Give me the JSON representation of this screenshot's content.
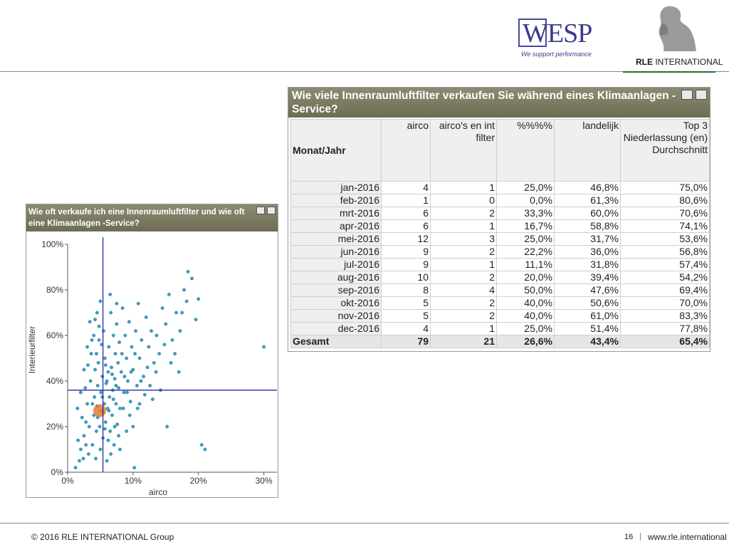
{
  "header": {
    "wesp_logo": {
      "text": "WESP",
      "tagline": "We support performance"
    },
    "rle_logo": {
      "name_bold": "RLE",
      "name_rest": " INTERNATIONAL",
      "icon": "thinker-statue-icon"
    }
  },
  "table_window": {
    "title": "Wie viele Innenraumluftfilter verkaufen Sie während eines Klimaanlagen -Service?",
    "columns": [
      "Monat/Jahr",
      "airco",
      "airco's en int filter",
      "%%%%",
      "landelijk",
      "Top 3 Niederlassung (en) Durchschnitt"
    ],
    "rows": [
      [
        "jan-2016",
        "4",
        "1",
        "25,0%",
        "46,8%",
        "75,0%"
      ],
      [
        "feb-2016",
        "1",
        "0",
        "0,0%",
        "61,3%",
        "80,6%"
      ],
      [
        "mrt-2016",
        "6",
        "2",
        "33,3%",
        "60,0%",
        "70,6%"
      ],
      [
        "apr-2016",
        "6",
        "1",
        "16,7%",
        "58,8%",
        "74,1%"
      ],
      [
        "mei-2016",
        "12",
        "3",
        "25,0%",
        "31,7%",
        "53,6%"
      ],
      [
        "jun-2016",
        "9",
        "2",
        "22,2%",
        "36,0%",
        "56,8%"
      ],
      [
        "jul-2016",
        "9",
        "1",
        "11,1%",
        "31,8%",
        "57,4%"
      ],
      [
        "aug-2016",
        "10",
        "2",
        "20,0%",
        "39,4%",
        "54,2%"
      ],
      [
        "sep-2016",
        "8",
        "4",
        "50,0%",
        "47,6%",
        "69,4%"
      ],
      [
        "okt-2016",
        "5",
        "2",
        "40,0%",
        "50,6%",
        "70,0%"
      ],
      [
        "nov-2016",
        "5",
        "2",
        "40,0%",
        "61,0%",
        "83,3%"
      ],
      [
        "dec-2016",
        "4",
        "1",
        "25,0%",
        "51,4%",
        "77,8%"
      ]
    ],
    "total": [
      "Gesamt",
      "79",
      "21",
      "26,6%",
      "43,4%",
      "65,4%"
    ]
  },
  "scatter_window": {
    "title": "Wie oft verkaufe ich eine Innenraumluftfilter und wie oft eine Klimaanlagen -Service?"
  },
  "chart_data": {
    "type": "scatter",
    "xlabel": "airco",
    "ylabel": "Interieurfilter",
    "xlim": [
      0,
      0.32
    ],
    "ylim": [
      0,
      1.0
    ],
    "xticks": [
      {
        "v": 0,
        "label": "0%"
      },
      {
        "v": 0.1,
        "label": "10%"
      },
      {
        "v": 0.2,
        "label": "20%"
      },
      {
        "v": 0.3,
        "label": "30%"
      }
    ],
    "yticks": [
      {
        "v": 0,
        "label": "0%"
      },
      {
        "v": 0.2,
        "label": "20%"
      },
      {
        "v": 0.4,
        "label": "40%"
      },
      {
        "v": 0.6,
        "label": "60%"
      },
      {
        "v": 0.8,
        "label": "80%"
      },
      {
        "v": 1.0,
        "label": "100%"
      }
    ],
    "reference_lines": {
      "x": 0.054,
      "y": 0.36,
      "color": "#2a2aa8"
    },
    "colors": {
      "point": "#3a9ec4",
      "highlight": "#e07b2a"
    },
    "highlight": {
      "x": 0.049,
      "y": 0.27
    },
    "points": [
      [
        0.012,
        0.02
      ],
      [
        0.018,
        0.05
      ],
      [
        0.02,
        0.1
      ],
      [
        0.025,
        0.16
      ],
      [
        0.028,
        0.22
      ],
      [
        0.03,
        0.3
      ],
      [
        0.032,
        0.08
      ],
      [
        0.035,
        0.4
      ],
      [
        0.036,
        0.52
      ],
      [
        0.038,
        0.12
      ],
      [
        0.04,
        0.25
      ],
      [
        0.041,
        0.33
      ],
      [
        0.042,
        0.45
      ],
      [
        0.043,
        0.06
      ],
      [
        0.044,
        0.18
      ],
      [
        0.045,
        0.29
      ],
      [
        0.046,
        0.38
      ],
      [
        0.047,
        0.48
      ],
      [
        0.048,
        0.58
      ],
      [
        0.049,
        0.2
      ],
      [
        0.05,
        0.1
      ],
      [
        0.051,
        0.35
      ],
      [
        0.052,
        0.27
      ],
      [
        0.053,
        0.42
      ],
      [
        0.054,
        0.15
      ],
      [
        0.055,
        0.62
      ],
      [
        0.056,
        0.3
      ],
      [
        0.057,
        0.5
      ],
      [
        0.058,
        0.22
      ],
      [
        0.059,
        0.39
      ],
      [
        0.06,
        0.05
      ],
      [
        0.061,
        0.28
      ],
      [
        0.062,
        0.44
      ],
      [
        0.063,
        0.55
      ],
      [
        0.064,
        0.33
      ],
      [
        0.065,
        0.18
      ],
      [
        0.066,
        0.7
      ],
      [
        0.067,
        0.46
      ],
      [
        0.068,
        0.25
      ],
      [
        0.069,
        0.36
      ],
      [
        0.07,
        0.6
      ],
      [
        0.071,
        0.12
      ],
      [
        0.072,
        0.41
      ],
      [
        0.073,
        0.52
      ],
      [
        0.074,
        0.3
      ],
      [
        0.075,
        0.65
      ],
      [
        0.076,
        0.21
      ],
      [
        0.077,
        0.48
      ],
      [
        0.078,
        0.37
      ],
      [
        0.079,
        0.57
      ],
      [
        0.08,
        0.28
      ],
      [
        0.082,
        0.44
      ],
      [
        0.084,
        0.72
      ],
      [
        0.086,
        0.35
      ],
      [
        0.088,
        0.6
      ],
      [
        0.09,
        0.5
      ],
      [
        0.092,
        0.4
      ],
      [
        0.094,
        0.66
      ],
      [
        0.096,
        0.31
      ],
      [
        0.098,
        0.55
      ],
      [
        0.1,
        0.45
      ],
      [
        0.102,
        0.02
      ],
      [
        0.104,
        0.62
      ],
      [
        0.106,
        0.38
      ],
      [
        0.108,
        0.74
      ],
      [
        0.11,
        0.5
      ],
      [
        0.113,
        0.58
      ],
      [
        0.116,
        0.42
      ],
      [
        0.12,
        0.68
      ],
      [
        0.124,
        0.55
      ],
      [
        0.128,
        0.62
      ],
      [
        0.132,
        0.48
      ],
      [
        0.136,
        0.6
      ],
      [
        0.14,
        0.52
      ],
      [
        0.145,
        0.72
      ],
      [
        0.15,
        0.65
      ],
      [
        0.155,
        0.78
      ],
      [
        0.16,
        0.58
      ],
      [
        0.166,
        0.7
      ],
      [
        0.172,
        0.62
      ],
      [
        0.178,
        0.8
      ],
      [
        0.184,
        0.88
      ],
      [
        0.19,
        0.85
      ],
      [
        0.196,
        0.67
      ],
      [
        0.2,
        0.76
      ],
      [
        0.205,
        0.12
      ],
      [
        0.21,
        0.1
      ],
      [
        0.3,
        0.55
      ],
      [
        0.1,
        0.2
      ],
      [
        0.11,
        0.3
      ],
      [
        0.03,
        0.55
      ],
      [
        0.034,
        0.66
      ],
      [
        0.04,
        0.6
      ],
      [
        0.045,
        0.7
      ],
      [
        0.05,
        0.75
      ],
      [
        0.025,
        0.45
      ],
      [
        0.02,
        0.35
      ],
      [
        0.015,
        0.28
      ],
      [
        0.065,
        0.78
      ],
      [
        0.075,
        0.74
      ],
      [
        0.085,
        0.28
      ],
      [
        0.095,
        0.25
      ],
      [
        0.09,
        0.18
      ],
      [
        0.08,
        0.1
      ],
      [
        0.07,
        0.32
      ],
      [
        0.06,
        0.4
      ],
      [
        0.058,
        0.47
      ],
      [
        0.052,
        0.56
      ],
      [
        0.048,
        0.64
      ],
      [
        0.044,
        0.52
      ],
      [
        0.038,
        0.3
      ],
      [
        0.033,
        0.2
      ],
      [
        0.028,
        0.12
      ],
      [
        0.024,
        0.06
      ],
      [
        0.016,
        0.14
      ],
      [
        0.022,
        0.24
      ],
      [
        0.027,
        0.37
      ],
      [
        0.031,
        0.47
      ],
      [
        0.037,
        0.58
      ],
      [
        0.042,
        0.67
      ],
      [
        0.062,
        0.14
      ],
      [
        0.066,
        0.08
      ],
      [
        0.072,
        0.2
      ],
      [
        0.078,
        0.16
      ],
      [
        0.083,
        0.52
      ],
      [
        0.087,
        0.42
      ],
      [
        0.091,
        0.35
      ],
      [
        0.097,
        0.44
      ],
      [
        0.103,
        0.52
      ],
      [
        0.107,
        0.28
      ],
      [
        0.112,
        0.4
      ],
      [
        0.118,
        0.34
      ],
      [
        0.122,
        0.46
      ],
      [
        0.126,
        0.38
      ],
      [
        0.13,
        0.32
      ],
      [
        0.135,
        0.44
      ],
      [
        0.142,
        0.36
      ],
      [
        0.148,
        0.56
      ],
      [
        0.152,
        0.2
      ],
      [
        0.158,
        0.48
      ],
      [
        0.164,
        0.52
      ],
      [
        0.17,
        0.44
      ],
      [
        0.175,
        0.7
      ],
      [
        0.182,
        0.75
      ],
      [
        0.053,
        0.33
      ],
      [
        0.046,
        0.24
      ],
      [
        0.057,
        0.19
      ],
      [
        0.063,
        0.27
      ],
      [
        0.068,
        0.43
      ],
      [
        0.074,
        0.38
      ]
    ]
  },
  "footer": {
    "copyright": "© 2016 RLE INTERNATIONAL Group",
    "page": "16",
    "separator": "|",
    "url": "www.rle.international"
  }
}
